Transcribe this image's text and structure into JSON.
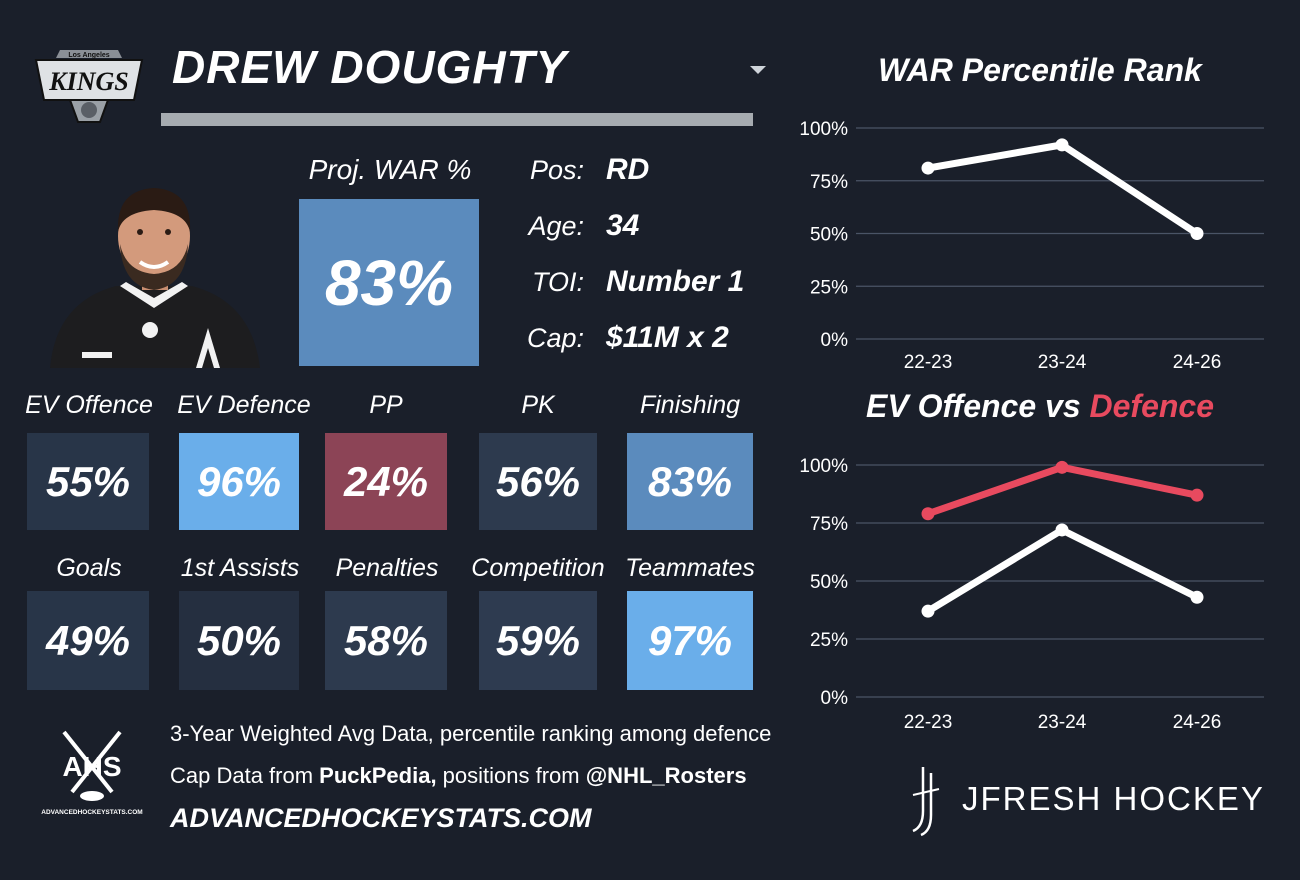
{
  "header": {
    "team_logo_text": "KINGS",
    "team_logo_subtext": "Los Angeles",
    "player_name": "DREW DOUGHTY"
  },
  "war": {
    "label": "Proj. WAR %",
    "value": "83%",
    "color": "#5b8bbd"
  },
  "info": [
    {
      "label": "Pos:",
      "value": "RD"
    },
    {
      "label": "Age:",
      "value": "34"
    },
    {
      "label": "TOI:",
      "value": "Number 1"
    },
    {
      "label": "Cap:",
      "value": "$11M x 2"
    }
  ],
  "tiles_row1": [
    {
      "label": "EV Offence",
      "value": "55%",
      "color": "#283548"
    },
    {
      "label": "EV Defence",
      "value": "96%",
      "color": "#6aaeea"
    },
    {
      "label": "PP",
      "value": "24%",
      "color": "#8c4456"
    },
    {
      "label": "PK",
      "value": "56%",
      "color": "#2d3a4e"
    },
    {
      "label": "Finishing",
      "value": "83%",
      "color": "#5b8bbd"
    }
  ],
  "tiles_row2": [
    {
      "label": "Goals",
      "value": "49%",
      "color": "#283548"
    },
    {
      "label": "1st Assists",
      "value": "50%",
      "color": "#252f40"
    },
    {
      "label": "Penalties",
      "value": "58%",
      "color": "#2d3a4e"
    },
    {
      "label": "Competition",
      "value": "59%",
      "color": "#2e3b50"
    },
    {
      "label": "Teammates",
      "value": "97%",
      "color": "#6aaeea"
    }
  ],
  "chart_data": [
    {
      "type": "line",
      "title": "WAR Percentile Rank",
      "categories": [
        "22-23",
        "23-24",
        "24-26"
      ],
      "series": [
        {
          "values": [
            81,
            92,
            50
          ],
          "color": "#ffffff"
        }
      ],
      "yticks": [
        "0%",
        "25%",
        "50%",
        "75%",
        "100%"
      ],
      "ylim": [
        0,
        100
      ],
      "grid": true
    },
    {
      "type": "line",
      "title": "EV Offence vs Defence",
      "title_parts": [
        "EV Offence vs ",
        "Defence"
      ],
      "categories": [
        "22-23",
        "23-24",
        "24-26"
      ],
      "series": [
        {
          "name": "EV Offence",
          "values": [
            37,
            72,
            43
          ],
          "color": "#ffffff"
        },
        {
          "name": "Defence",
          "values": [
            79,
            99,
            87
          ],
          "color": "#e84a5f"
        }
      ],
      "yticks": [
        "0%",
        "25%",
        "50%",
        "75%",
        "100%"
      ],
      "ylim": [
        0,
        100
      ],
      "grid": true
    }
  ],
  "footer": {
    "ahs_logo_text": "AHS",
    "ahs_logo_subtext": "ADVANCEDHOCKEYSTATS.COM",
    "line1": "3-Year Weighted Avg Data, percentile ranking among defence",
    "line2_prefix": "Cap Data from ",
    "line2_bold1": "PuckPedia,",
    "line2_mid": " positions from ",
    "line2_bold2": "@NHL_Rosters",
    "website": "ADVANCEDHOCKEYSTATS.COM",
    "brand": "JFRESH HOCKEY"
  }
}
